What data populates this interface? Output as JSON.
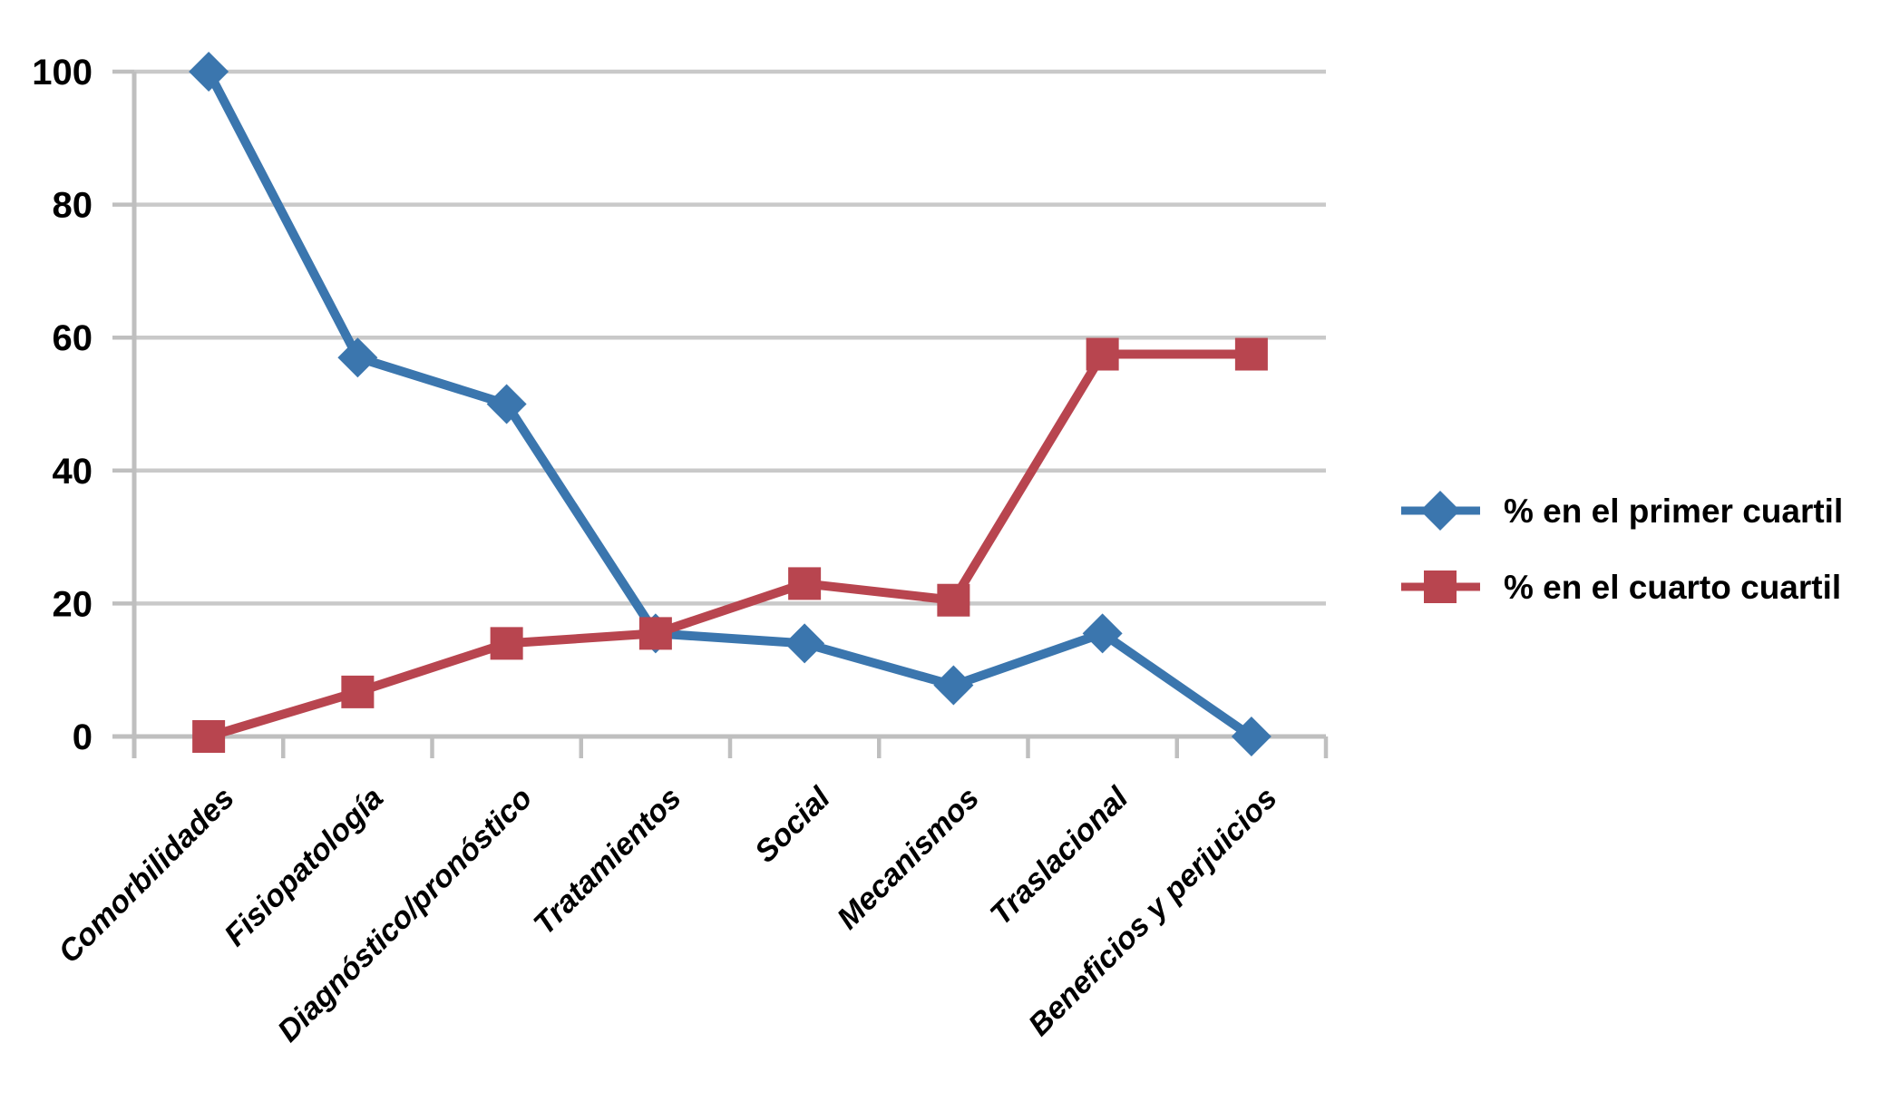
{
  "chart_data": {
    "type": "line",
    "title": "",
    "categories": [
      "Comorbilidades",
      "Fisiopatología",
      "Diagnóstico/pronóstico",
      "Tratamientos",
      "Social",
      "Mecanismos",
      "Traslacional",
      "Beneficios y perjuicios"
    ],
    "series": [
      {
        "name": "% en el primer cuartil",
        "marker": "diamond",
        "color": "#3B76AE",
        "values": [
          100,
          57,
          50,
          15.5,
          14,
          7.7,
          15.5,
          0
        ]
      },
      {
        "name": "% en el cuarto cuartil",
        "marker": "square",
        "color": "#B8454F",
        "values": [
          0,
          6.7,
          14,
          15.5,
          23,
          20.5,
          57.5,
          57.5
        ]
      }
    ],
    "xlabel": "",
    "ylabel": "",
    "ylim": [
      0,
      100
    ],
    "yticks": [
      0,
      20,
      40,
      60,
      80,
      100
    ],
    "grid": "horizontal",
    "grid_color": "#C9C9C9",
    "axis_color": "#BFBFBF",
    "text_color": "#000000",
    "background": "#FFFFFF",
    "legend_position": "right-middle"
  }
}
